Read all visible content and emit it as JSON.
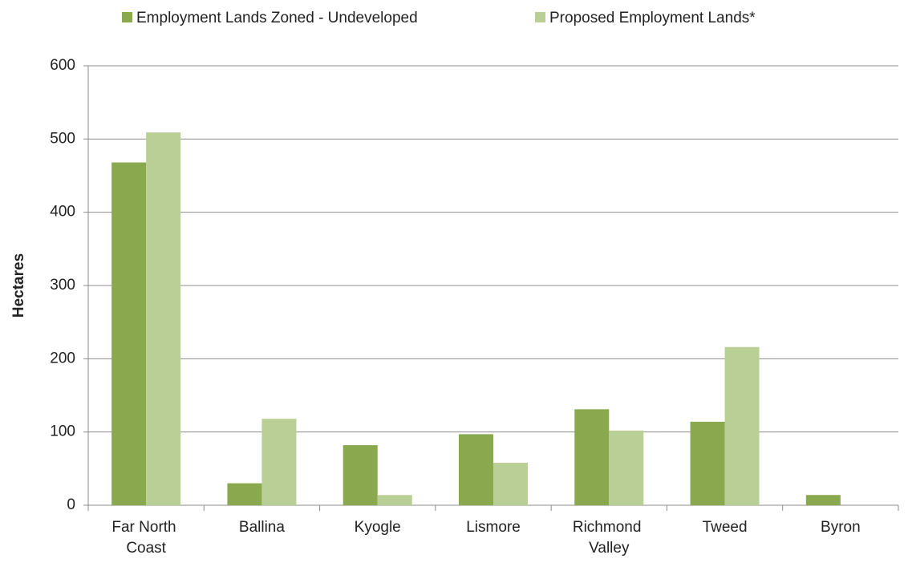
{
  "chart_data": {
    "type": "bar",
    "y_label": "Hectares",
    "categories": [
      "Far North Coast",
      "Ballina",
      "Kyogle",
      "Lismore",
      "Richmond Valley",
      "Tweed",
      "Byron"
    ],
    "series": [
      {
        "name": "Employment Lands Zoned - Undeveloped",
        "color": "#8aa84e",
        "values": [
          468,
          30,
          82,
          97,
          131,
          114,
          14
        ]
      },
      {
        "name": "Proposed Employment Lands*",
        "color": "#b9cf95",
        "values": [
          509,
          118,
          14,
          58,
          102,
          216,
          null
        ]
      }
    ],
    "ylim": [
      0,
      600
    ],
    "yticks": [
      0,
      100,
      200,
      300,
      400,
      500,
      600
    ],
    "grid": true,
    "legend": "top"
  }
}
